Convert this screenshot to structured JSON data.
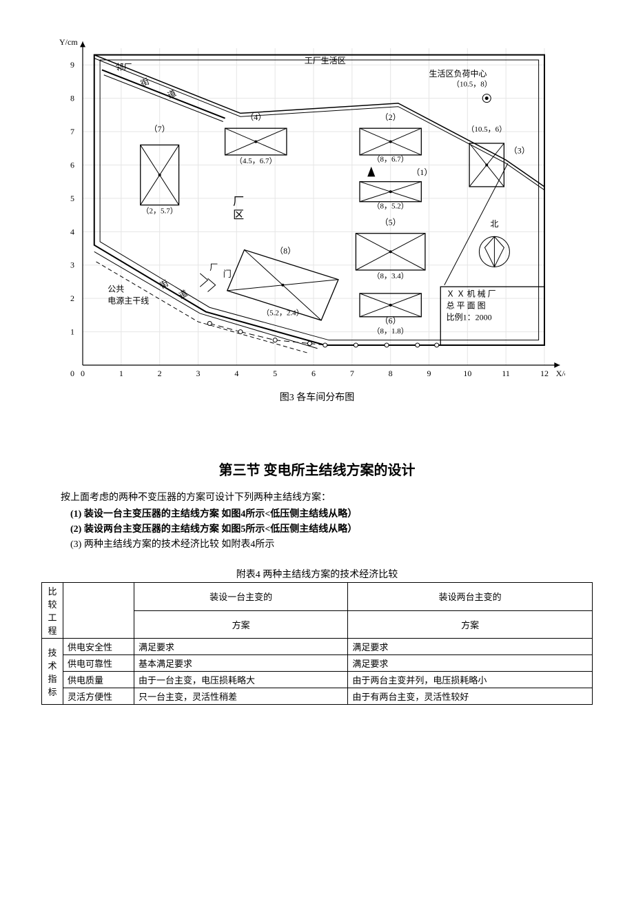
{
  "chart": {
    "y_axis_label": "Y/cm",
    "x_axis_label": "X/cm",
    "xlim": [
      0,
      12
    ],
    "ylim": [
      0,
      9.5
    ],
    "x_ticks": [
      0,
      1,
      2,
      3,
      4,
      5,
      6,
      7,
      8,
      9,
      10,
      11,
      12
    ],
    "y_ticks": [
      0,
      1,
      2,
      3,
      4,
      5,
      6,
      7,
      8,
      9
    ],
    "grid_color": "#e5e5e5",
    "axis_color": "#000000",
    "stroke_color": "#000000",
    "bg": "#ffffff",
    "font_size": 12,
    "labels": {
      "factory_life": "工厂生活区",
      "neighbor": "邻厂",
      "street1": "街",
      "road1": "道",
      "life_center1": "生活区负荷中心",
      "life_center2": "（10.5，8）",
      "b7_num": "（7）",
      "b7_coord": "（2，5.7）",
      "b4_num": "（4）",
      "b4_coord": "（4.5，6.7）",
      "b2_num": "（2）",
      "b2_coord": "（8，6.7）",
      "b3_num": "（3）",
      "b3_coord": "（10.5，6）",
      "b1_num": "（1）",
      "b1_coord": "（8，5.2）",
      "b5_num": "（5）",
      "b5_coord": "（8，3.4）",
      "b6_num": "（6）",
      "b6_coord": "（8，1.8）",
      "b8_num": "（8）",
      "b8_coord": "（5.2，2.4）",
      "factory_area1": "厂",
      "factory_area2": "区",
      "gate1": "厂",
      "gate2": "门",
      "street2": "街",
      "road2": "道",
      "pub_src1": "公共",
      "pub_src2": "电源主干线",
      "north": "北",
      "title1": "Ｘ Ｘ 机 械 厂",
      "title2": "总 平 面 图",
      "title3": "比例1：2000"
    },
    "caption": "图3 各车间分布图"
  },
  "section_title": "第三节 变电所主结线方案的设计",
  "intro": "按上面考虑的两种不变压器的方案可设计下列两种主结线方案：",
  "item1": "(1)  装设一台主变压器的主结线方案  如图4所示<低压侧主结线从略）",
  "item2": "(2)  装设两台主变压器的主结线方案  如图5所示<低压侧主结线从略）",
  "item3": "(3) 两种主结线方案的技术经济比较   如附表4所示",
  "table_caption": "附表4  两种主结线方案的技术经济比较",
  "table": {
    "hdr_col1": "比较工程",
    "hdr_col2a": "装设一台主变的",
    "hdr_col2b": "方案",
    "hdr_col3a": "装设两台主变的",
    "hdr_col3b": "方案",
    "rowgroup": "技术指标",
    "r1c1": "供电安全性",
    "r1c2": "满足要求",
    "r1c3": "满足要求",
    "r2c1": "供电可靠性",
    "r2c2": "基本满足要求",
    "r2c3": "满足要求",
    "r3c1": "供电质量",
    "r3c2": "由于一台主变，电压损耗略大",
    "r3c3": "由于两台主变并列，电压损耗略小",
    "r4c1": "灵活方便性",
    "r4c2": "只一台主变，灵活性稍差",
    "r4c3": "由于有两台主变，灵活性较好"
  }
}
